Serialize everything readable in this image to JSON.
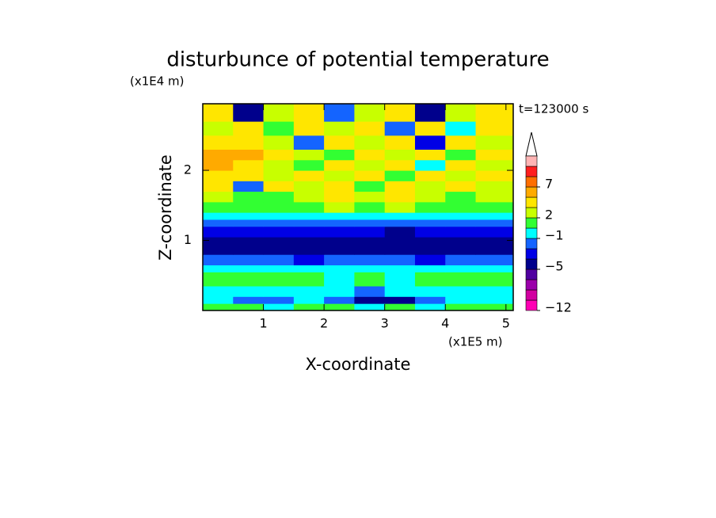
{
  "chart_data": {
    "type": "contour",
    "title": "disturbunce of potential temperature",
    "time_label": "t=123000 s",
    "xlabel": "X-coordinate",
    "xunit": "(x1E5 m)",
    "ylabel": "Z-coordinate",
    "yunit": "(x1E4 m)",
    "xlim": [
      0,
      5.12
    ],
    "ylim": [
      0,
      2.95
    ],
    "xticks": [
      1,
      2,
      3,
      4,
      5
    ],
    "yticks": [
      1,
      2
    ],
    "x": [
      0,
      0.5,
      1,
      1.5,
      2,
      2.5,
      3,
      3.5,
      4,
      4.5,
      5.12
    ],
    "y": [
      0,
      0.1,
      0.2,
      0.35,
      0.55,
      0.65,
      0.8,
      1.05,
      1.2,
      1.3,
      1.4,
      1.55,
      1.7,
      1.85,
      2.0,
      2.15,
      2.3,
      2.5,
      2.7,
      2.95
    ],
    "z": [
      [
        0.5,
        0.5,
        -0.5,
        0.5,
        0.5,
        -0.5,
        0.5,
        -0.5,
        0.5,
        0.5
      ],
      [
        -0.5,
        -1.5,
        -1.5,
        -0.5,
        -1.5,
        -4.5,
        -4.5,
        -1.5,
        -0.5,
        -0.5
      ],
      [
        -0.5,
        -0.5,
        -0.5,
        -0.5,
        -0.5,
        -1.5,
        -0.5,
        -0.5,
        -0.5,
        -0.5
      ],
      [
        0.5,
        0.5,
        0.5,
        0.5,
        -0.5,
        0.5,
        -0.5,
        0.5,
        0.5,
        0.5
      ],
      [
        -0.5,
        -0.5,
        -0.5,
        -0.5,
        -0.5,
        -0.5,
        -0.5,
        -0.5,
        -0.5,
        -0.5
      ],
      [
        -1.5,
        -1.5,
        -1.5,
        -3,
        -1.5,
        -1.5,
        -1.5,
        -3,
        -1.5,
        -1.5
      ],
      [
        -4.5,
        -4.5,
        -4.5,
        -4.5,
        -4.5,
        -4.5,
        -4.5,
        -4.5,
        -4.5,
        -4.5
      ],
      [
        -3,
        -3,
        -3,
        -3,
        -3,
        -3,
        -4.5,
        -3,
        -3,
        -3
      ],
      [
        -1.5,
        -1.5,
        -1.5,
        -1.5,
        -1.5,
        -1.5,
        -1.5,
        -1.5,
        -1.5,
        -1.5
      ],
      [
        -0.5,
        -0.5,
        -0.5,
        -0.5,
        -0.5,
        -0.5,
        -0.5,
        -0.5,
        -0.5,
        -0.5
      ],
      [
        0.5,
        1.5,
        0.5,
        1.5,
        2.5,
        1.5,
        2.5,
        1.5,
        0.5,
        0.5
      ],
      [
        2.5,
        0.5,
        1.5,
        2.5,
        4,
        2.5,
        4,
        2.5,
        1.5,
        2.5
      ],
      [
        4,
        -1.5,
        4,
        2.5,
        4,
        1.5,
        4,
        2.5,
        4,
        2.5
      ],
      [
        4,
        4,
        2.5,
        4,
        2.5,
        4,
        0.5,
        4,
        2.5,
        4
      ],
      [
        6,
        4,
        2.5,
        1.5,
        4,
        2.5,
        4,
        -0.5,
        4,
        2.5
      ],
      [
        6,
        6,
        4,
        2.5,
        0.5,
        4,
        2.5,
        4,
        0.5,
        4
      ],
      [
        4,
        4,
        2.5,
        -1.5,
        4,
        2.5,
        4,
        -3,
        4,
        2.5
      ],
      [
        2.5,
        4,
        0.5,
        4,
        2.5,
        4,
        -1.5,
        4,
        -0.5,
        4
      ],
      [
        4,
        -4.5,
        2.5,
        4,
        -1.5,
        2.5,
        4,
        -4.5,
        2.5,
        4
      ]
    ],
    "colorbar": {
      "levels": [
        -12,
        -10,
        -8,
        -6,
        -5,
        -4,
        -2,
        -1,
        0,
        2,
        3,
        5,
        7,
        9,
        11,
        13
      ],
      "colors": [
        "#ff00b4",
        "#d200a0",
        "#9b00aa",
        "#5000a0",
        "#00008c",
        "#0000e6",
        "#1464ff",
        "#00ffff",
        "#32ff32",
        "#c8ff00",
        "#ffe600",
        "#ffaa00",
        "#ff6e00",
        "#ff1e1e",
        "#ffb4b4"
      ],
      "ticks": [
        {
          "value": -12,
          "label": "−12"
        },
        {
          "value": -5,
          "label": "−5"
        },
        {
          "value": -1,
          "label": "−1"
        },
        2,
        7
      ]
    }
  }
}
